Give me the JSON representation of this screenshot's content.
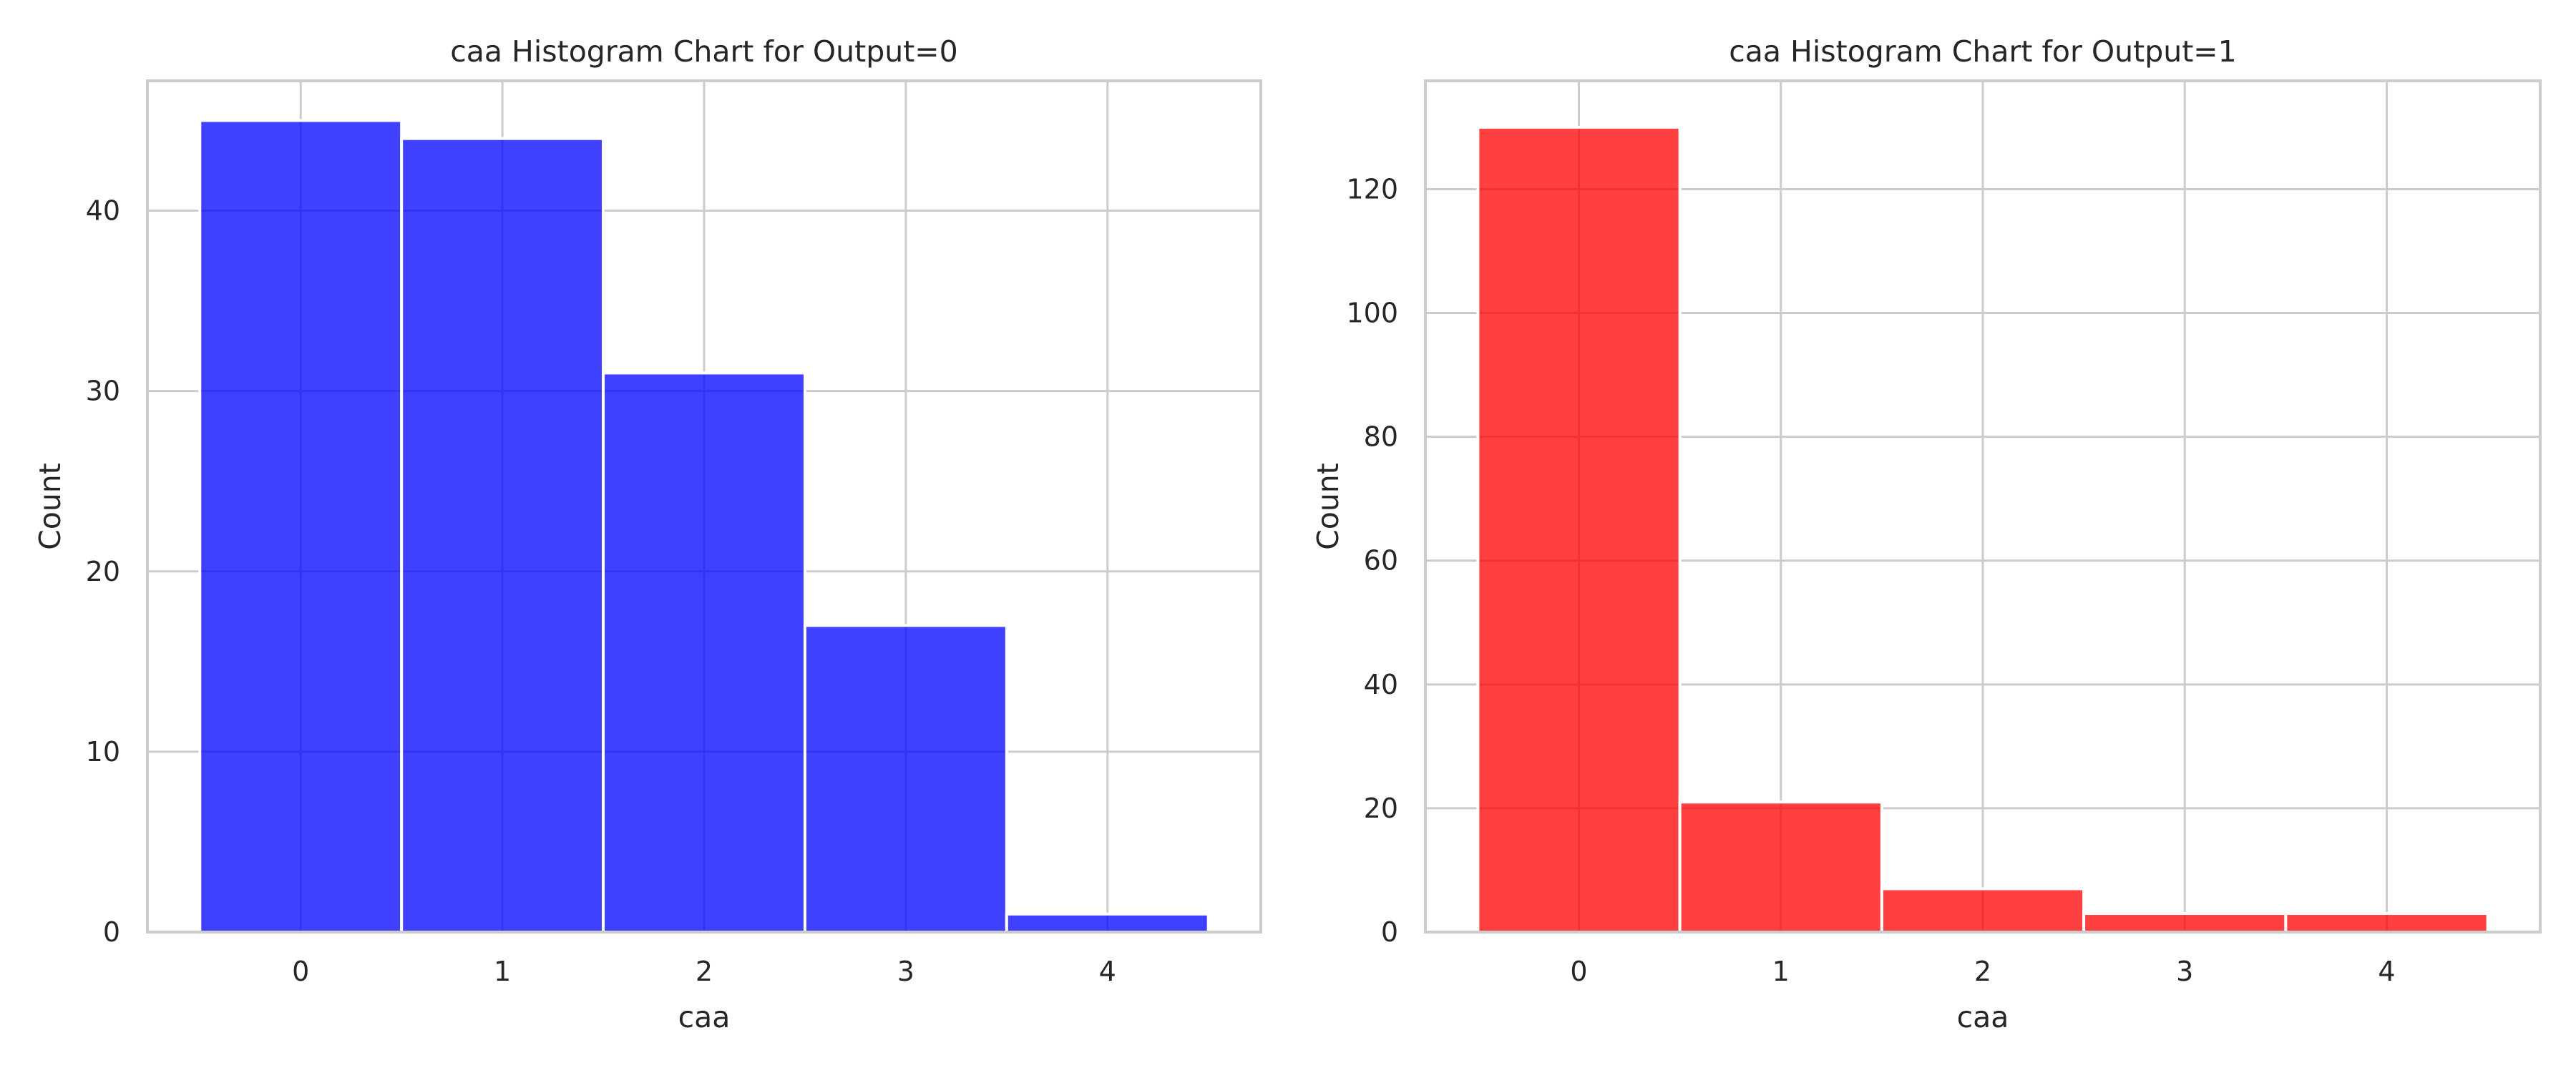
{
  "chart_data": [
    {
      "type": "bar",
      "title": "caa Histogram Chart for Output=0",
      "xlabel": "caa",
      "ylabel": "Count",
      "categories": [
        "0",
        "1",
        "2",
        "3",
        "4"
      ],
      "values": [
        45,
        44,
        31,
        17,
        1
      ],
      "xlim": [
        -0.76,
        4.76
      ],
      "ylim": [
        0,
        47.2
      ],
      "yticks": [
        0,
        10,
        20,
        30,
        40
      ],
      "grid": true,
      "color": "#0000ff",
      "opacity": 0.75
    },
    {
      "type": "bar",
      "title": "caa Histogram Chart for Output=1",
      "xlabel": "caa",
      "ylabel": "Count",
      "categories": [
        "0",
        "1",
        "2",
        "3",
        "4"
      ],
      "values": [
        130,
        21,
        7,
        3,
        3
      ],
      "xlim": [
        -0.76,
        4.76
      ],
      "ylim": [
        0,
        137.5
      ],
      "yticks": [
        0,
        20,
        40,
        60,
        80,
        100,
        120
      ],
      "grid": true,
      "color": "#ff0000",
      "opacity": 0.75
    }
  ]
}
